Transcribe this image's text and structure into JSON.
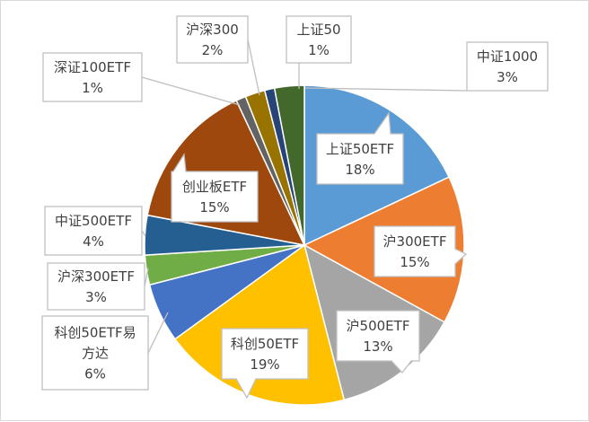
{
  "chart_data": {
    "type": "pie",
    "legend": "none",
    "slices": [
      {
        "label": "上证50ETF",
        "pct_label": "18%",
        "value": 18,
        "color": "#5b9bd5"
      },
      {
        "label": "沪300ETF",
        "pct_label": "15%",
        "value": 15,
        "color": "#ed7d31"
      },
      {
        "label": "沪500ETF",
        "pct_label": "13%",
        "value": 13,
        "color": "#a5a5a5"
      },
      {
        "label": "科创50ETF",
        "pct_label": "19%",
        "value": 19,
        "color": "#ffc000"
      },
      {
        "label": "科创50ETF易方达",
        "pct_label": "6%",
        "value": 6,
        "color": "#4472c4"
      },
      {
        "label": "沪深300ETF",
        "pct_label": "3%",
        "value": 3,
        "color": "#70ad47"
      },
      {
        "label": "中证500ETF",
        "pct_label": "4%",
        "value": 4,
        "color": "#255e91"
      },
      {
        "label": "创业板ETF",
        "pct_label": "15%",
        "value": 15,
        "color": "#9e480e"
      },
      {
        "label": "深证100ETF",
        "pct_label": "1%",
        "value": 1,
        "color": "#636363"
      },
      {
        "label": "沪深300",
        "pct_label": "2%",
        "value": 2,
        "color": "#997300"
      },
      {
        "label": "上证50",
        "pct_label": "1%",
        "value": 1,
        "color": "#264478"
      },
      {
        "label": "中证1000",
        "pct_label": "3%",
        "value": 3,
        "color": "#43682b"
      }
    ]
  }
}
